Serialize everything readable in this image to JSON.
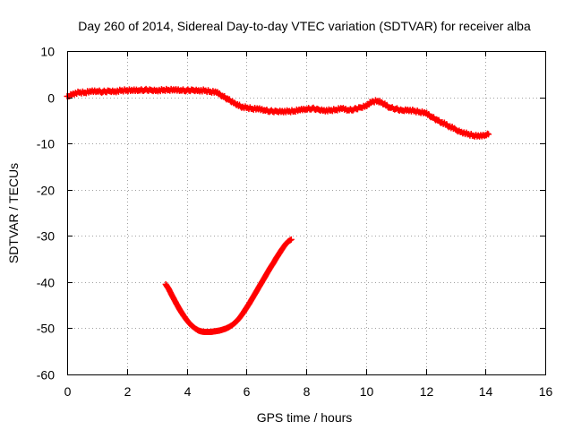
{
  "chart_data": {
    "type": "scatter",
    "title": "Day 260 of 2014, Sidereal Day-to-day VTEC variation (SDTVAR) for receiver alba",
    "xlabel": "GPS time / hours",
    "ylabel": "SDTVAR / TECUs",
    "xlim": [
      0,
      16
    ],
    "ylim": [
      -60,
      10
    ],
    "x_ticks": [
      0,
      2,
      4,
      6,
      8,
      10,
      12,
      14,
      16
    ],
    "y_ticks": [
      10,
      0,
      -10,
      -20,
      -30,
      -40,
      -50,
      -60
    ],
    "grid": true,
    "marker": "plus",
    "series": [
      {
        "name": "satellite-arc-1",
        "color": "#ff0000",
        "x": [
          0.0,
          0.2,
          0.4,
          0.6,
          0.8,
          1.0,
          1.2,
          1.4,
          1.6,
          1.8,
          2.0,
          2.2,
          2.4,
          2.6,
          2.8,
          3.0,
          3.2,
          3.4,
          3.6,
          3.8,
          4.0,
          4.2,
          4.4,
          4.6,
          4.8,
          5.0,
          5.2,
          5.4,
          5.6,
          5.8,
          6.0,
          6.2,
          6.4,
          6.6,
          6.8,
          7.0,
          7.2,
          7.4,
          7.6,
          7.8,
          8.0,
          8.2,
          8.4,
          8.6,
          8.8,
          9.0,
          9.2,
          9.4,
          9.6,
          9.8,
          10.0,
          10.2,
          10.4,
          10.6,
          10.8,
          11.0,
          11.2,
          11.4,
          11.6,
          11.8,
          12.0,
          12.2,
          12.4,
          13.0,
          13.2,
          13.4,
          13.6,
          13.8,
          14.0,
          14.1
        ],
        "y": [
          0.2,
          0.8,
          1.0,
          1.0,
          1.2,
          1.3,
          1.2,
          1.4,
          1.3,
          1.4,
          1.5,
          1.4,
          1.5,
          1.6,
          1.6,
          1.5,
          1.5,
          1.6,
          1.5,
          1.5,
          1.5,
          1.6,
          1.5,
          1.4,
          1.2,
          1.0,
          0.3,
          -0.5,
          -1.2,
          -2.0,
          -2.3,
          -2.5,
          -2.6,
          -2.8,
          -3.0,
          -3.0,
          -3.0,
          -3.1,
          -3.0,
          -2.8,
          -2.6,
          -2.4,
          -2.6,
          -2.8,
          -2.9,
          -2.7,
          -2.5,
          -2.8,
          -2.6,
          -2.2,
          -1.8,
          -1.0,
          -0.8,
          -1.5,
          -2.2,
          -2.5,
          -2.8,
          -2.7,
          -3.0,
          -3.2,
          -3.5,
          -4.2,
          -5.0,
          -7.0,
          -7.5,
          -8.0,
          -8.3,
          -8.5,
          -8.2,
          -8.0
        ]
      },
      {
        "name": "satellite-arc-2",
        "color": "#ff0000",
        "x": [
          3.3,
          3.4,
          3.5,
          3.6,
          3.7,
          3.8,
          3.9,
          4.0,
          4.1,
          4.2,
          4.3,
          4.4,
          4.5,
          4.6,
          4.7,
          4.8,
          4.9,
          5.0,
          5.1,
          5.2,
          5.3,
          5.4,
          5.5,
          5.6,
          5.7,
          5.8,
          5.9,
          6.0,
          6.1,
          6.2,
          6.3,
          6.4,
          6.5,
          6.6,
          6.7,
          6.8,
          6.9,
          7.0,
          7.1,
          7.2,
          7.3,
          7.4,
          7.5
        ],
        "y": [
          -40.5,
          -41.5,
          -42.8,
          -44.0,
          -45.2,
          -46.3,
          -47.3,
          -48.2,
          -49.0,
          -49.6,
          -50.1,
          -50.5,
          -50.7,
          -50.8,
          -50.8,
          -50.8,
          -50.7,
          -50.6,
          -50.5,
          -50.3,
          -50.1,
          -49.8,
          -49.4,
          -48.9,
          -48.3,
          -47.5,
          -46.6,
          -45.6,
          -44.6,
          -43.5,
          -42.4,
          -41.3,
          -40.2,
          -39.1,
          -38.0,
          -36.9,
          -35.9,
          -34.8,
          -33.8,
          -32.8,
          -31.9,
          -31.2,
          -30.8
        ]
      }
    ]
  }
}
